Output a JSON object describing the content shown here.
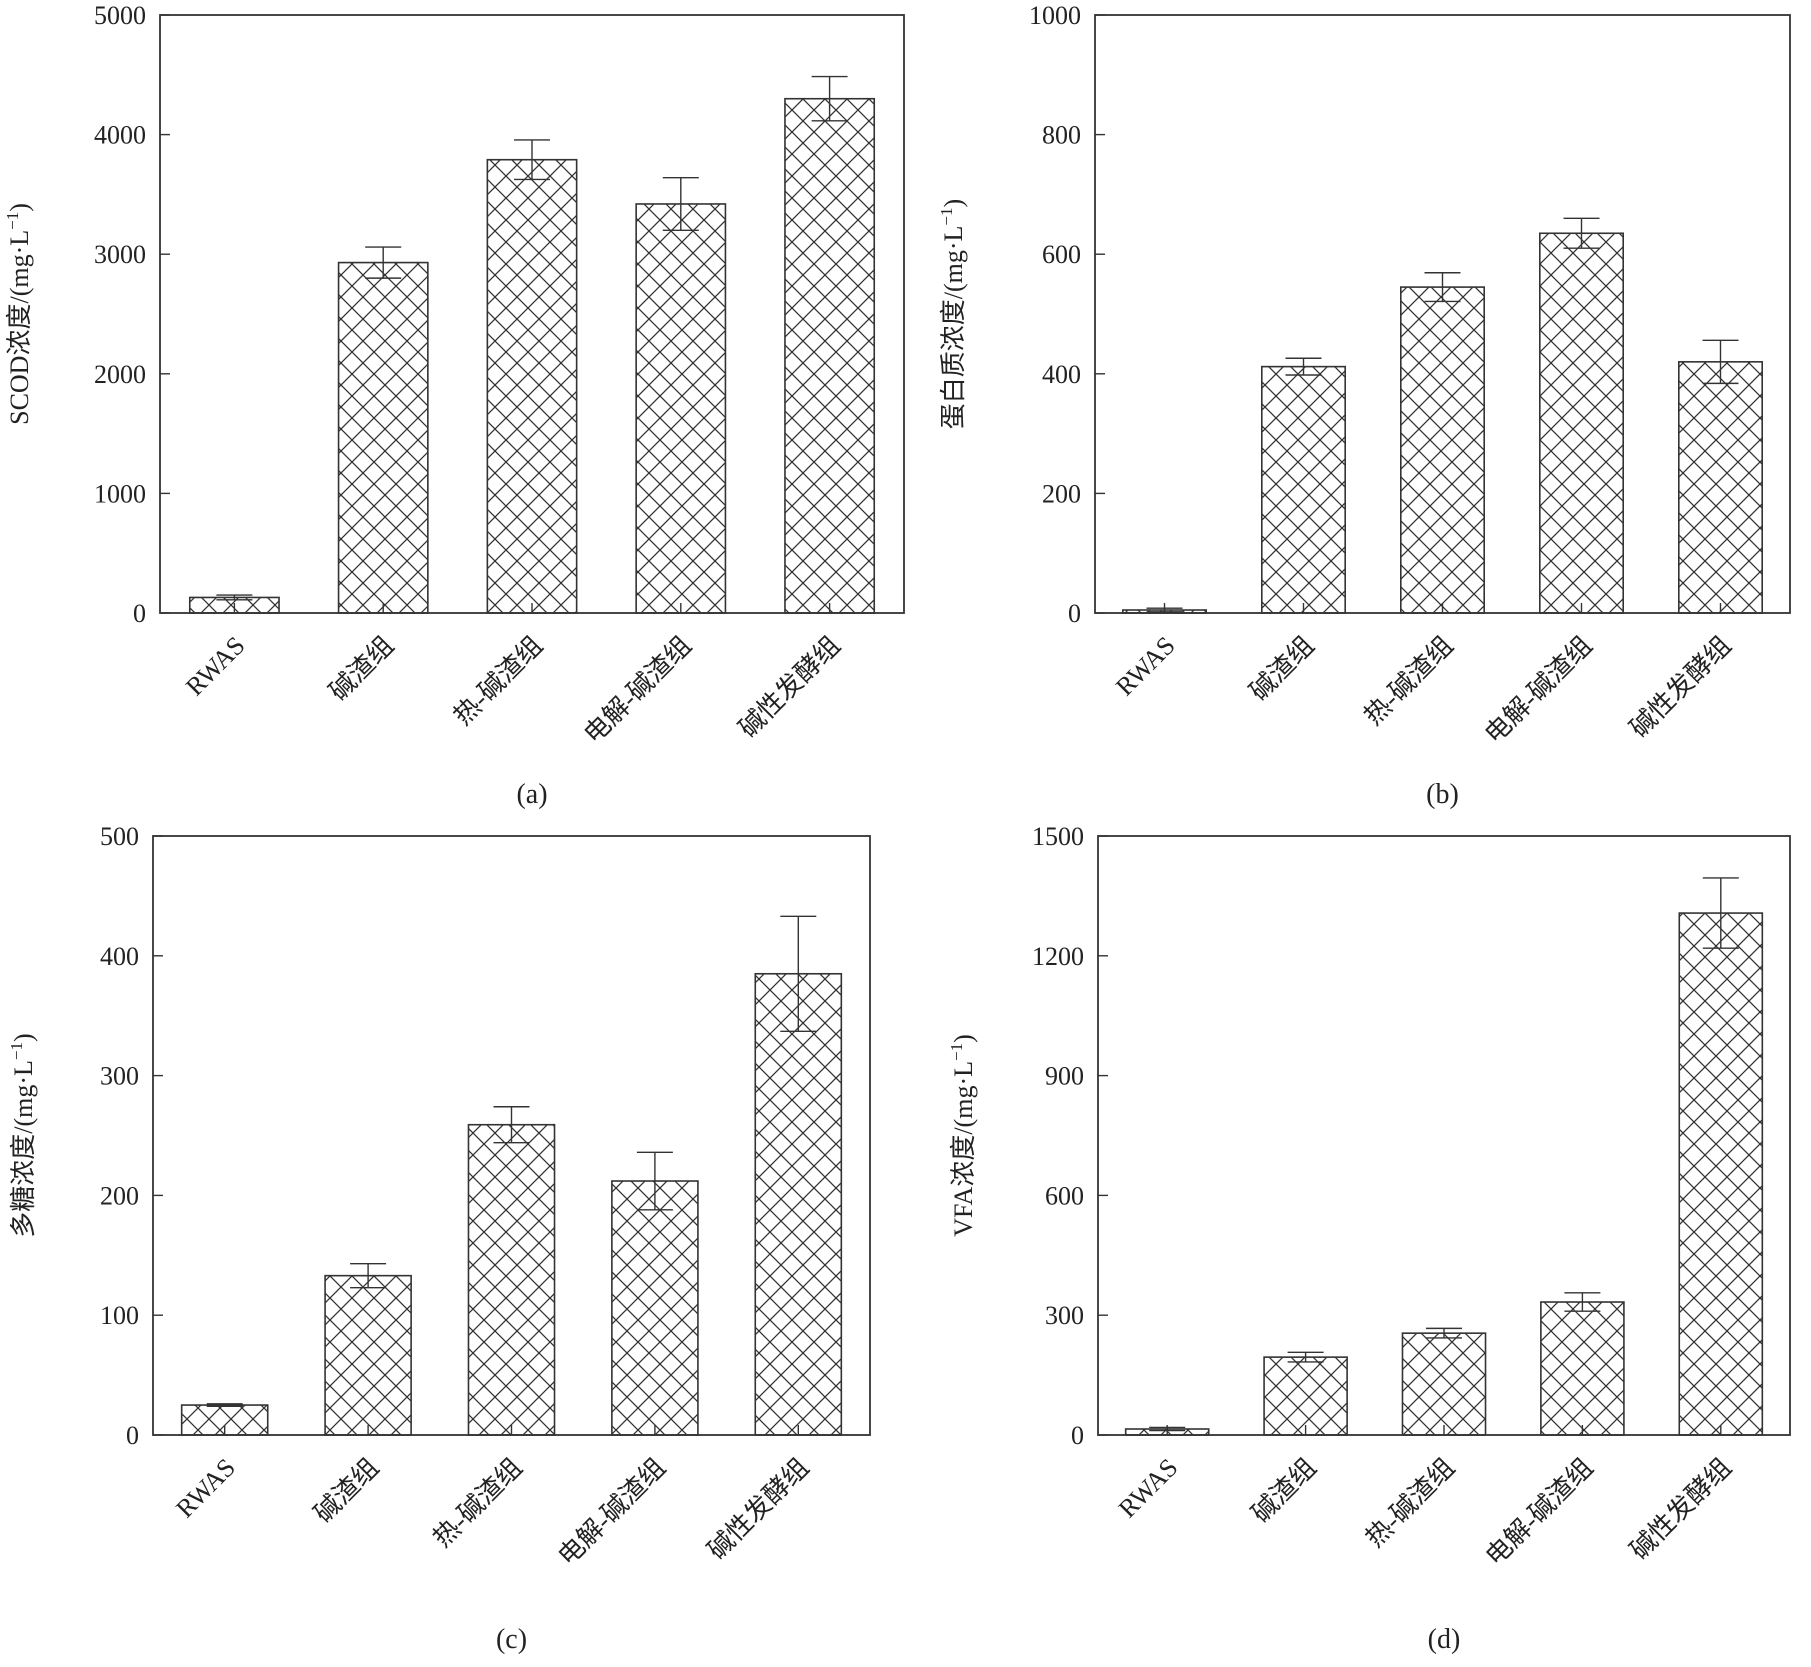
{
  "colors": {
    "bar_fill": "#ffffff",
    "hatch": "#333333",
    "axis": "#333333"
  },
  "chart_data": [
    {
      "type": "bar",
      "panel_label": "(a)",
      "ylabel": "SCOD浓度/(mg·L",
      "ylabel_sup": "−1",
      "ylabel_close": ")",
      "categories": [
        "RWAS",
        "碱渣组",
        "热-碱渣组",
        "电解-碱渣组",
        "碱性发酵组"
      ],
      "values": [
        130,
        2930,
        3790,
        3420,
        4300
      ],
      "errors": [
        20,
        130,
        165,
        220,
        185
      ],
      "ylim": [
        0,
        5000
      ],
      "yticks": [
        0,
        1000,
        2000,
        3000,
        4000,
        5000
      ],
      "ytick_labels": [
        "0",
        "1000",
        "2000",
        "3000",
        "4000",
        "5000"
      ],
      "grid": false
    },
    {
      "type": "bar",
      "panel_label": "(b)",
      "ylabel": "蛋白质浓度/(mg·L",
      "ylabel_sup": "−1",
      "ylabel_close": ")",
      "categories": [
        "RWAS",
        "碱渣组",
        "热-碱渣组",
        "电解-碱渣组",
        "碱性发酵组"
      ],
      "values": [
        5,
        412,
        545,
        635,
        420
      ],
      "errors": [
        3,
        14,
        24,
        25,
        36
      ],
      "ylim": [
        0,
        1000
      ],
      "yticks": [
        0,
        200,
        400,
        600,
        800,
        1000
      ],
      "ytick_labels": [
        "0",
        "200",
        "400",
        "600",
        "800",
        "1000"
      ],
      "grid": false
    },
    {
      "type": "bar",
      "panel_label": "(c)",
      "ylabel": "多糖浓度/(mg·L",
      "ylabel_sup": "−1",
      "ylabel_close": ")",
      "categories": [
        "RWAS",
        "碱渣组",
        "热-碱渣组",
        "电解-碱渣组",
        "碱性发酵组"
      ],
      "values": [
        25,
        133,
        259,
        212,
        385
      ],
      "errors": [
        1,
        10,
        15,
        24,
        48
      ],
      "ylim": [
        0,
        500
      ],
      "yticks": [
        0,
        100,
        200,
        300,
        400,
        500
      ],
      "ytick_labels": [
        "0",
        "100",
        "200",
        "300",
        "400",
        "500"
      ],
      "grid": false
    },
    {
      "type": "bar",
      "panel_label": "(d)",
      "ylabel": "VFA浓度/(mg·L",
      "ylabel_sup": "−1",
      "ylabel_close": ")",
      "categories": [
        "RWAS",
        "碱渣组",
        "热-碱渣组",
        "电解-碱渣组",
        "碱性发酵组"
      ],
      "values": [
        15,
        195,
        255,
        333,
        1307
      ],
      "errors": [
        4,
        12,
        12,
        23,
        88
      ],
      "ylim": [
        0,
        1500
      ],
      "yticks": [
        0,
        300,
        600,
        900,
        1200,
        1500
      ],
      "ytick_labels": [
        "0",
        "300",
        "600",
        "900",
        "1200",
        "1500"
      ],
      "grid": false
    }
  ]
}
